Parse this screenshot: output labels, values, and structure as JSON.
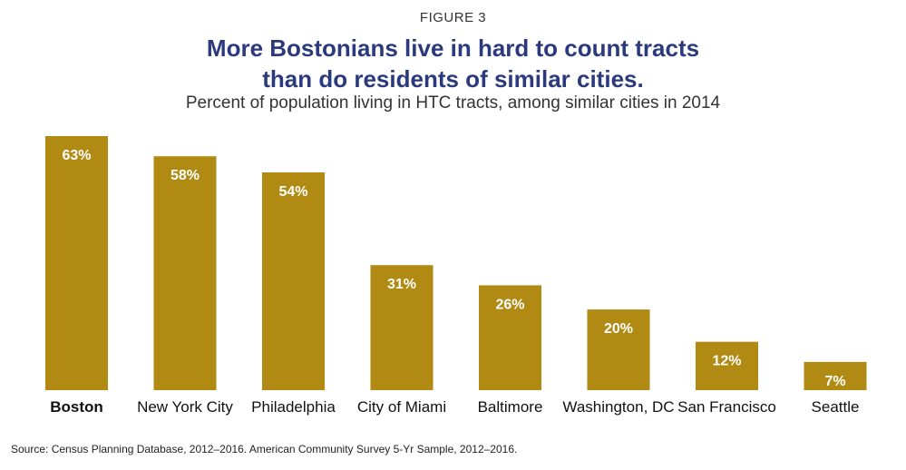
{
  "figure_label": "FIGURE 3",
  "title_line1": "More Bostonians live in hard to count tracts",
  "title_line2": "than do residents of similar cities.",
  "subtitle": "Percent of population living in HTC tracts, among similar cities in 2014",
  "source": "Source: Census Planning Database, 2012–2016. American Community Survey 5-Yr Sample, 2012–2016.",
  "colors": {
    "bar": "#b08a12",
    "title": "#2b3a7d"
  },
  "chart_data": {
    "type": "bar",
    "title": "More Bostonians live in hard to count tracts than do residents of similar cities.",
    "subtitle": "Percent of population living in HTC tracts, among similar cities in 2014",
    "categories": [
      "Boston",
      "New York City",
      "Philadelphia",
      "City of Miami",
      "Baltimore",
      "Washington, DC",
      "San Francisco",
      "Seattle"
    ],
    "values": [
      63,
      58,
      54,
      31,
      26,
      20,
      12,
      7
    ],
    "value_labels": [
      "63%",
      "58%",
      "54%",
      "31%",
      "26%",
      "20%",
      "12%",
      "7%"
    ],
    "highlight_category": "Boston",
    "xlabel": "",
    "ylabel": "",
    "ylim": [
      0,
      63
    ],
    "grid": false,
    "legend": "none"
  }
}
